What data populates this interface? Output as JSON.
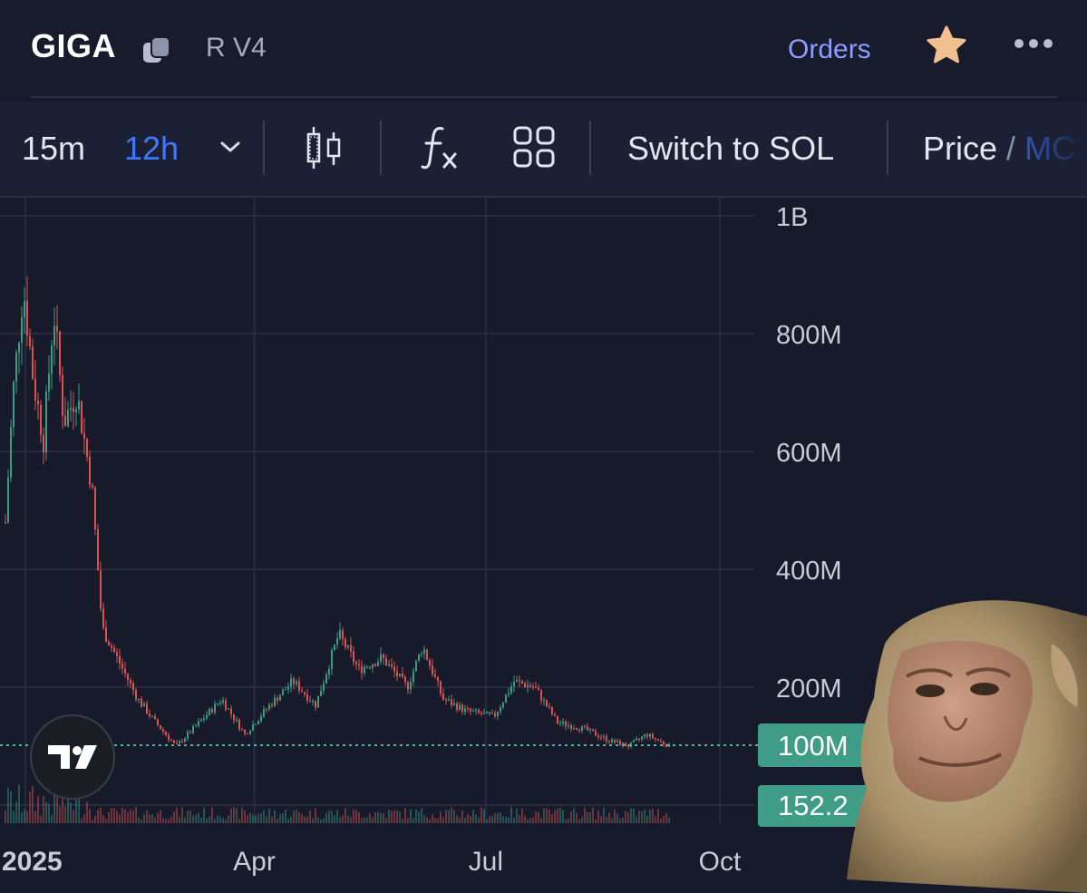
{
  "header": {
    "ticker": "GIGA",
    "dex_label": "R V4",
    "orders_label": "Orders",
    "icons": {
      "copy": "copy-icon",
      "star": "star-icon",
      "more": "more-icon"
    },
    "star_color": "#f2c08f",
    "orders_color": "#8e9bff"
  },
  "toolbar": {
    "timeframes": [
      "15m",
      "12h"
    ],
    "active_timeframe": "12h",
    "switch_label": "Switch to SOL",
    "price_label": "Price",
    "price_separator": "/",
    "mc_label": "MC",
    "icons": [
      "chevron-down-icon",
      "candlestick-icon",
      "indicators-fx-icon",
      "layout-grid-icon"
    ]
  },
  "chart_data": {
    "type": "candlestick",
    "y_tick_labels": [
      "1B",
      "800M",
      "600M",
      "400M",
      "200M",
      "100M"
    ],
    "x_tick_labels": [
      "2025",
      "Apr",
      "Jul",
      "Oct"
    ],
    "ylim": [
      0,
      1000000000
    ],
    "grid": true,
    "close_trend": [
      {
        "x": "2025-01-01",
        "y": 480000000
      },
      {
        "x": "2025-01-04",
        "y": 700000000
      },
      {
        "x": "2025-01-08",
        "y": 880000000
      },
      {
        "x": "2025-01-12",
        "y": 720000000
      },
      {
        "x": "2025-01-16",
        "y": 620000000
      },
      {
        "x": "2025-01-20",
        "y": 840000000
      },
      {
        "x": "2025-01-24",
        "y": 650000000
      },
      {
        "x": "2025-01-29",
        "y": 700000000
      },
      {
        "x": "2025-02-04",
        "y": 540000000
      },
      {
        "x": "2025-02-08",
        "y": 300000000
      },
      {
        "x": "2025-02-15",
        "y": 240000000
      },
      {
        "x": "2025-02-22",
        "y": 180000000
      },
      {
        "x": "2025-03-01",
        "y": 140000000
      },
      {
        "x": "2025-03-09",
        "y": 100000000
      },
      {
        "x": "2025-03-16",
        "y": 130000000
      },
      {
        "x": "2025-03-27",
        "y": 180000000
      },
      {
        "x": "2025-04-05",
        "y": 120000000
      },
      {
        "x": "2025-04-15",
        "y": 170000000
      },
      {
        "x": "2025-04-24",
        "y": 210000000
      },
      {
        "x": "2025-05-03",
        "y": 170000000
      },
      {
        "x": "2025-05-12",
        "y": 290000000
      },
      {
        "x": "2025-05-20",
        "y": 230000000
      },
      {
        "x": "2025-05-29",
        "y": 250000000
      },
      {
        "x": "2025-06-08",
        "y": 200000000
      },
      {
        "x": "2025-06-14",
        "y": 270000000
      },
      {
        "x": "2025-06-22",
        "y": 180000000
      },
      {
        "x": "2025-07-01",
        "y": 160000000
      },
      {
        "x": "2025-07-12",
        "y": 150000000
      },
      {
        "x": "2025-07-20",
        "y": 210000000
      },
      {
        "x": "2025-07-28",
        "y": 200000000
      },
      {
        "x": "2025-08-06",
        "y": 140000000
      },
      {
        "x": "2025-08-16",
        "y": 130000000
      },
      {
        "x": "2025-08-26",
        "y": 110000000
      },
      {
        "x": "2025-09-03",
        "y": 100000000
      },
      {
        "x": "2025-09-10",
        "y": 120000000
      },
      {
        "x": "2025-09-19",
        "y": 100000000
      }
    ],
    "current_price_label": "100M",
    "second_label": "152.2",
    "colors": {
      "up": "#3a9c85",
      "down": "#d9544f",
      "grid": "#262b3d",
      "price_line": "#4fb89c"
    }
  }
}
